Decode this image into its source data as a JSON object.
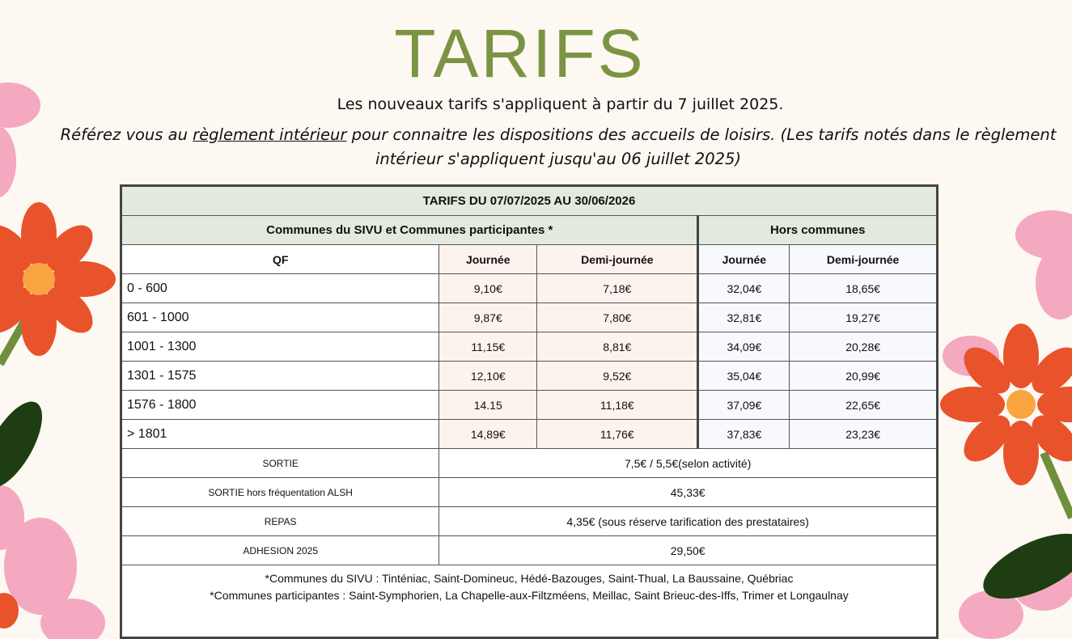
{
  "title": "TARIFS",
  "subtitle": "Les nouveaux tarifs s'appliquent à partir du 7 juillet 2025.",
  "intro": {
    "before": "Référez vous au ",
    "link": "règlement intérieur",
    "after": " pour connaitre les dispositions des accueils de loisirs. (Les tarifs notés dans le règlement intérieur s'appliquent jusqu'au 06 juillet 2025)"
  },
  "table": {
    "title": "TARIFS DU 07/07/2025 AU 30/06/2026",
    "group1": "Communes du SIVU et Communes participantes *",
    "group2": "Hors communes",
    "cols": [
      "QF",
      "Journée",
      "Demi-journée",
      "Journée",
      "Demi-journée"
    ],
    "rows": [
      [
        "0 - 600",
        "9,10€",
        "7,18€",
        "32,04€",
        "18,65€"
      ],
      [
        "601 - 1000",
        "9,87€",
        "7,80€",
        "32,81€",
        "19,27€"
      ],
      [
        "1001 - 1300",
        "11,15€",
        "8,81€",
        "34,09€",
        "20,28€"
      ],
      [
        "1301 - 1575",
        "12,10€",
        "9,52€",
        "35,04€",
        "20,99€"
      ],
      [
        "1576 - 1800",
        "14.15",
        "11,18€",
        "37,09€",
        "22,65€"
      ],
      [
        "> 1801",
        "14,89€",
        "11,76€",
        "37,83€",
        "23,23€"
      ]
    ],
    "extras": [
      [
        "SORTIE",
        "7,5€ / 5,5€(selon activité)"
      ],
      [
        "SORTIE hors fréquentation ALSH",
        "45,33€"
      ],
      [
        "REPAS",
        "4,35€ (sous réserve tarification des prestataires)"
      ],
      [
        "ADHESION 2025",
        "29,50€"
      ]
    ],
    "notes": [
      "*Communes du SIVU : Tinténiac, Saint-Domineuc, Hédé-Bazouges, Saint-Thual, La Baussaine, Québriac",
      "*Communes participantes : Saint-Symphorien,  La Chapelle-aux-Filtzméens, Meillac, Saint Brieuc-des-Iffs, Trimer et Longaulnay"
    ]
  },
  "colors": {
    "title": "#7a9443",
    "header": "#e3e9dd",
    "pink": "#fdf3ee",
    "flower_red": "#e8532b",
    "flower_pink": "#f4a9c0"
  }
}
